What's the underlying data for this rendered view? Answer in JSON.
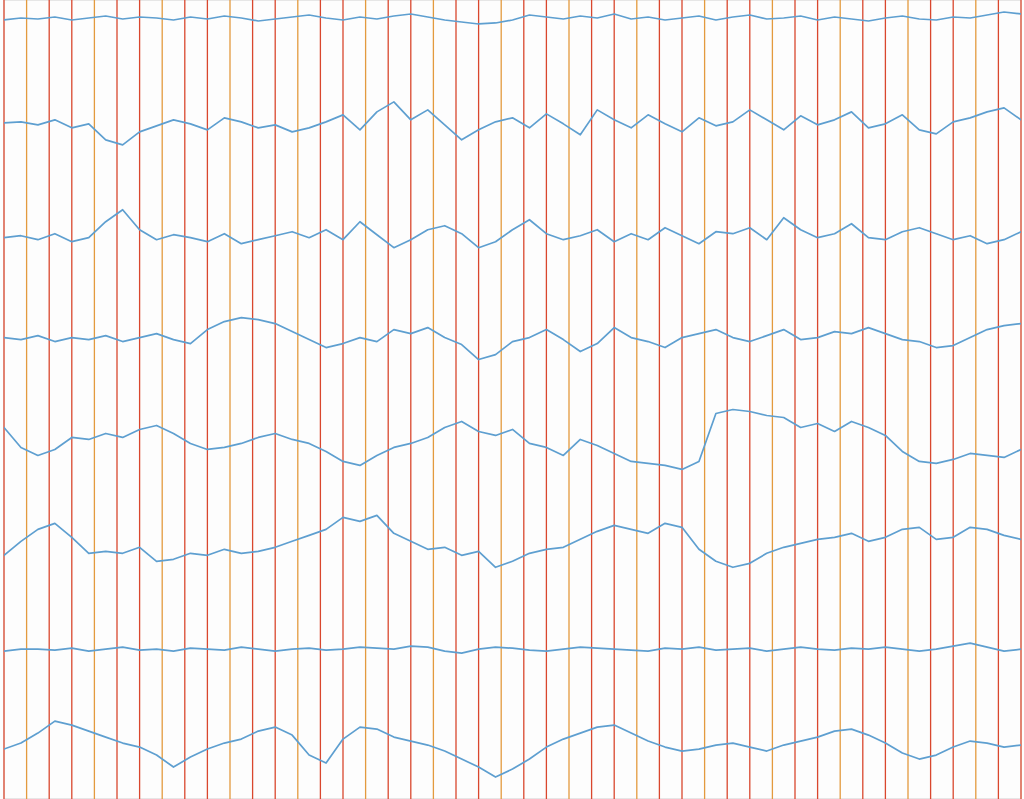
{
  "chart_data": {
    "type": "line",
    "x": [
      0,
      0.75,
      1.5,
      2.25,
      3,
      3.75,
      4.5,
      5.25,
      6,
      6.75,
      7.5,
      8.25,
      9,
      9.75,
      10.5,
      11.25,
      12,
      12.75,
      13.5,
      14.25,
      15,
      15.75,
      16.5,
      17.25,
      18,
      18.75,
      19.5,
      20.25,
      21,
      21.75,
      22.5,
      23.25,
      24,
      24.75,
      25.5,
      26.25,
      27,
      27.75,
      28.5,
      29.25,
      30,
      30.75,
      31.5,
      32.25,
      33,
      33.75,
      34.5,
      35.25,
      36,
      36.75,
      37.5,
      38.25,
      39,
      39.75,
      40.5,
      41.25,
      42,
      42.75,
      43.5,
      44.25,
      45
    ],
    "series": [
      {
        "color": "#5e9fd0",
        "values": [
          780,
          782,
          781,
          783,
          780,
          782,
          784,
          781,
          783,
          782,
          780,
          783,
          781,
          784,
          782,
          779,
          781,
          783,
          785,
          782,
          780,
          783,
          781,
          784,
          786,
          783,
          780,
          778,
          776,
          777,
          780,
          785,
          783,
          781,
          784,
          782,
          786,
          781,
          783,
          780,
          782,
          784,
          780,
          783,
          785,
          781,
          782,
          784,
          780,
          783,
          781,
          779,
          782,
          784,
          781,
          780,
          783,
          782,
          785,
          788,
          786
        ]
      },
      {
        "color": "#5e9fd0",
        "values": [
          677,
          678,
          675,
          680,
          672,
          676,
          660,
          655,
          668,
          674,
          680,
          676,
          670,
          682,
          678,
          672,
          675,
          668,
          672,
          678,
          685,
          670,
          688,
          698,
          680,
          690,
          675,
          660,
          670,
          678,
          682,
          672,
          686,
          676,
          665,
          690,
          680,
          672,
          685,
          676,
          668,
          682,
          674,
          678,
          690,
          680,
          670,
          684,
          675,
          680,
          688,
          672,
          676,
          685,
          670,
          666,
          678,
          682,
          688,
          692,
          680
        ]
      },
      {
        "color": "#5e9fd0",
        "values": [
          562,
          564,
          560,
          566,
          558,
          562,
          578,
          590,
          570,
          560,
          565,
          562,
          558,
          566,
          556,
          560,
          564,
          568,
          562,
          570,
          560,
          578,
          565,
          552,
          560,
          570,
          574,
          566,
          552,
          558,
          570,
          580,
          566,
          560,
          564,
          570,
          558,
          566,
          560,
          572,
          564,
          556,
          568,
          566,
          572,
          560,
          582,
          570,
          562,
          566,
          576,
          562,
          560,
          568,
          572,
          566,
          560,
          564,
          556,
          560,
          568
        ]
      },
      {
        "color": "#5e9fd0",
        "values": [
          462,
          460,
          464,
          458,
          462,
          460,
          464,
          458,
          462,
          466,
          460,
          456,
          470,
          478,
          482,
          480,
          476,
          468,
          460,
          452,
          456,
          462,
          458,
          470,
          466,
          472,
          462,
          455,
          440,
          445,
          458,
          462,
          470,
          460,
          448,
          456,
          472,
          462,
          458,
          452,
          462,
          466,
          470,
          462,
          458,
          464,
          470,
          460,
          462,
          468,
          466,
          472,
          466,
          460,
          458,
          452,
          454,
          462,
          470,
          474,
          476
        ]
      },
      {
        "color": "#5e9fd0",
        "values": [
          372,
          352,
          344,
          350,
          362,
          360,
          366,
          362,
          370,
          374,
          366,
          356,
          350,
          352,
          356,
          362,
          366,
          360,
          356,
          348,
          338,
          334,
          344,
          352,
          356,
          362,
          372,
          378,
          368,
          364,
          370,
          356,
          352,
          344,
          360,
          354,
          346,
          338,
          336,
          334,
          330,
          338,
          386,
          390,
          388,
          384,
          382,
          372,
          376,
          368,
          378,
          372,
          364,
          348,
          338,
          336,
          340,
          346,
          344,
          342,
          350
        ]
      },
      {
        "color": "#5e9fd0",
        "values": [
          244,
          258,
          270,
          276,
          262,
          246,
          248,
          246,
          252,
          238,
          240,
          246,
          244,
          250,
          246,
          248,
          252,
          258,
          264,
          270,
          282,
          278,
          284,
          266,
          258,
          250,
          252,
          244,
          248,
          232,
          238,
          246,
          250,
          252,
          260,
          268,
          274,
          270,
          266,
          276,
          272,
          250,
          238,
          232,
          236,
          246,
          252,
          256,
          260,
          262,
          266,
          258,
          262,
          270,
          272,
          260,
          262,
          272,
          270,
          264,
          260
        ]
      },
      {
        "color": "#5e9fd0",
        "values": [
          148,
          150,
          150,
          149,
          151,
          148,
          150,
          152,
          149,
          150,
          148,
          151,
          150,
          149,
          152,
          150,
          148,
          150,
          151,
          149,
          150,
          152,
          151,
          150,
          153,
          152,
          148,
          146,
          150,
          152,
          151,
          149,
          148,
          150,
          152,
          151,
          150,
          149,
          148,
          151,
          150,
          152,
          149,
          150,
          151,
          148,
          150,
          152,
          150,
          149,
          151,
          150,
          152,
          150,
          148,
          150,
          153,
          156,
          152,
          148,
          150
        ]
      },
      {
        "color": "#5e9fd0",
        "values": [
          50,
          56,
          66,
          78,
          74,
          68,
          62,
          56,
          52,
          44,
          32,
          42,
          50,
          56,
          60,
          68,
          72,
          64,
          44,
          36,
          60,
          72,
          70,
          62,
          58,
          54,
          48,
          40,
          32,
          22,
          30,
          40,
          52,
          60,
          66,
          72,
          74,
          66,
          58,
          52,
          48,
          50,
          54,
          56,
          52,
          48,
          54,
          58,
          62,
          68,
          70,
          64,
          56,
          46,
          40,
          44,
          52,
          58,
          56,
          52,
          54
        ]
      }
    ],
    "xlim": [
      0,
      45
    ],
    "xticks": [
      0,
      1,
      2,
      3,
      4,
      5,
      6,
      7,
      8,
      9,
      10,
      11,
      12,
      13,
      14,
      15,
      16,
      17,
      18,
      19,
      20,
      21,
      22,
      23,
      24,
      25,
      26,
      27,
      28,
      29,
      30,
      31,
      32,
      33,
      34,
      35,
      36,
      37,
      38,
      39,
      40,
      41,
      42,
      43,
      44,
      45
    ],
    "ylim": [
      0,
      800
    ],
    "grid": true,
    "tick_labels": false
  }
}
